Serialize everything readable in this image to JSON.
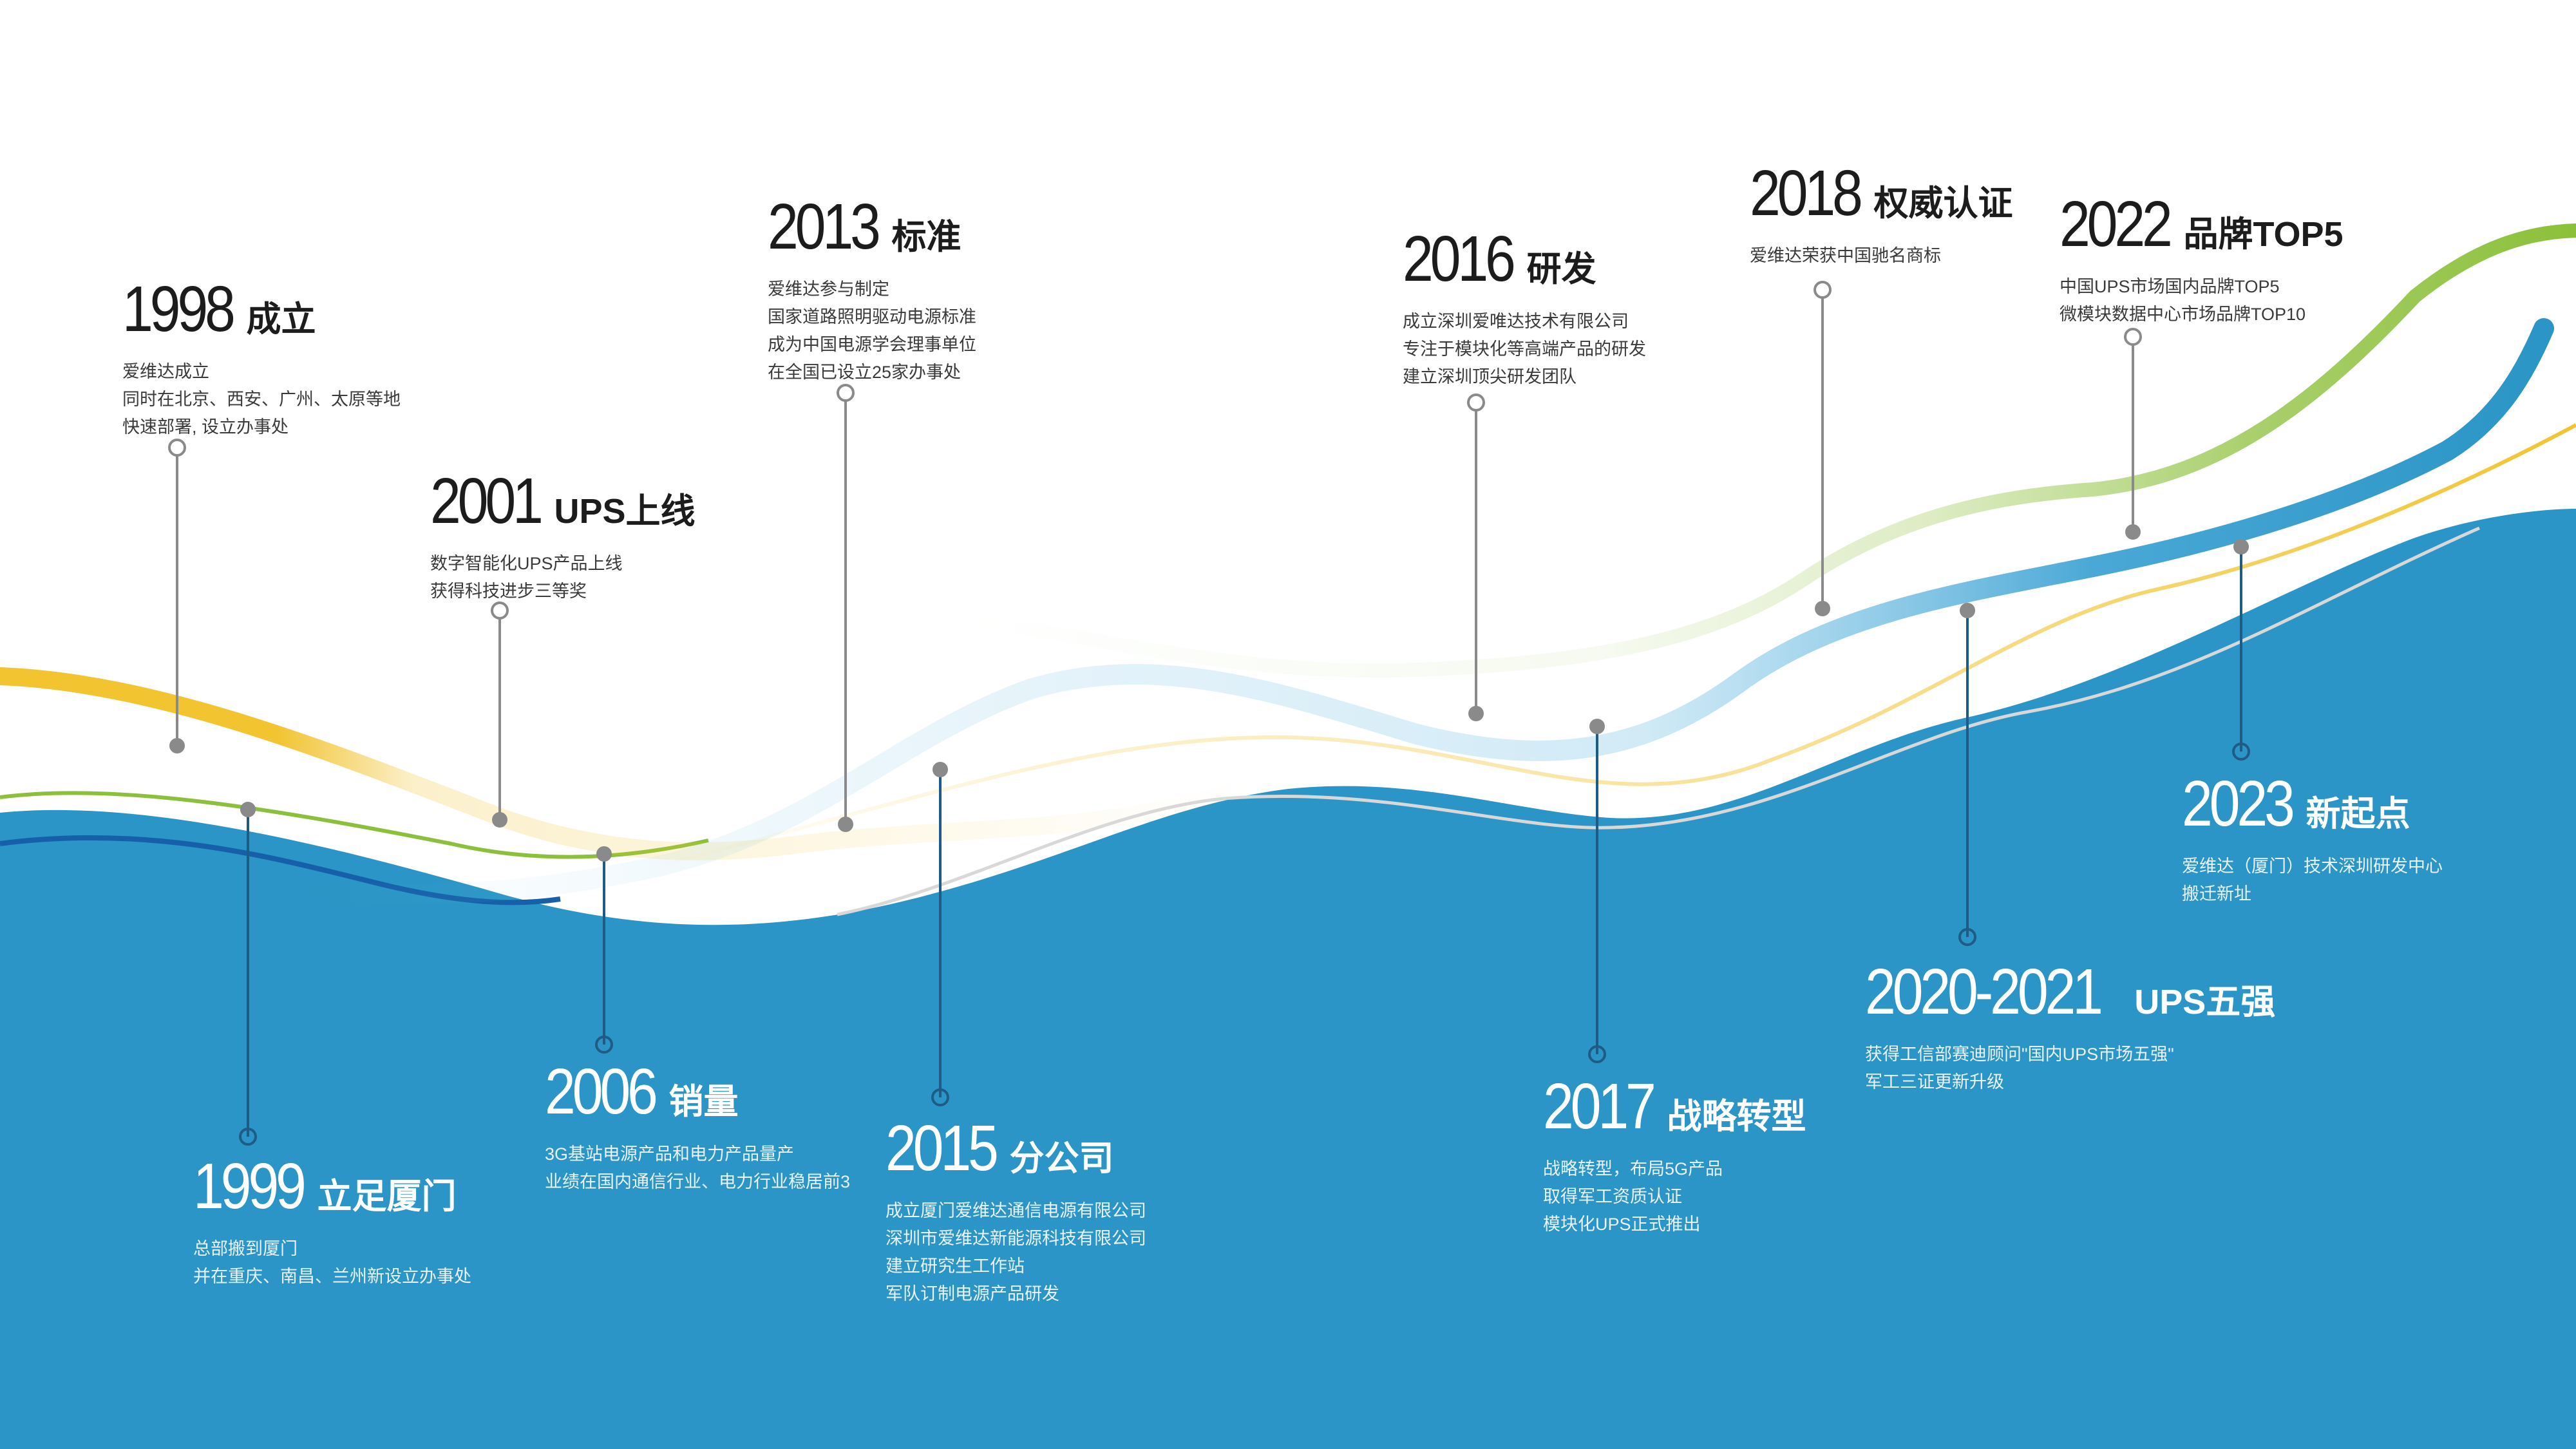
{
  "colors": {
    "blue": "#2a95c6",
    "dark_blue": "#1560a8",
    "yellow": "#f1c430",
    "green": "#8cc03a",
    "connector": "#8a8a8a"
  },
  "milestones": [
    {
      "year": "1998",
      "title": "成立",
      "lines": [
        "爱维达成立",
        "同时在北京、西安、广州、太原等地",
        "快速部署, 设立办事处"
      ]
    },
    {
      "year": "1999",
      "title": "立足厦门",
      "lines": [
        "总部搬到厦门",
        "并在重庆、南昌、兰州新设立办事处"
      ]
    },
    {
      "year": "2001",
      "title": "UPS上线",
      "lines": [
        "数字智能化UPS产品上线",
        "获得科技进步三等奖"
      ]
    },
    {
      "year": "2006",
      "title": "销量",
      "lines": [
        "3G基站电源产品和电力产品量产",
        "业绩在国内通信行业、电力行业稳居前3"
      ]
    },
    {
      "year": "2013",
      "title": "标准",
      "lines": [
        "爱维达参与制定",
        "国家道路照明驱动电源标准",
        "成为中国电源学会理事单位",
        "在全国已设立25家办事处"
      ]
    },
    {
      "year": "2015",
      "title": "分公司",
      "lines": [
        "成立厦门爱维达通信电源有限公司",
        "深圳市爱维达新能源科技有限公司",
        "建立研究生工作站",
        "军队订制电源产品研发"
      ]
    },
    {
      "year": "2016",
      "title": "研发",
      "lines": [
        "成立深圳爱唯达技术有限公司",
        "专注于模块化等高端产品的研发",
        "建立深圳顶尖研发团队"
      ]
    },
    {
      "year": "2017",
      "title": "战略转型",
      "lines": [
        "战略转型，布局5G产品",
        "取得军工资质认证",
        "模块化UPS正式推出"
      ]
    },
    {
      "year": "2018",
      "title": "权威认证",
      "lines": [
        "爱维达荣获中国驰名商标"
      ]
    },
    {
      "year": "2020-2021",
      "title": "UPS五强",
      "lines": [
        "获得工信部赛迪顾问\"国内UPS市场五强\"",
        "军工三证更新升级"
      ]
    },
    {
      "year": "2022",
      "title": "品牌TOP5",
      "lines": [
        "中国UPS市场国内品牌TOP5",
        "微模块数据中心市场品牌TOP10"
      ]
    },
    {
      "year": "2023",
      "title": "新起点",
      "lines": [
        "爱维达（厦门）技术深圳研发中心",
        "搬迁新址"
      ]
    }
  ]
}
